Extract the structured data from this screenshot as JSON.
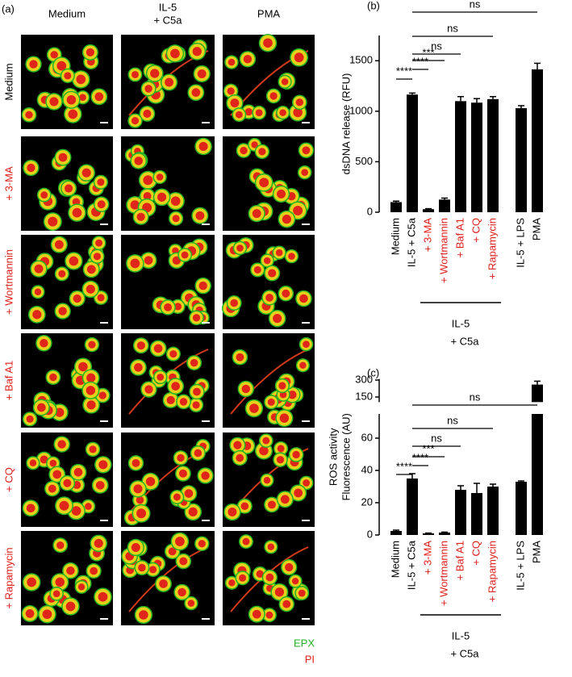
{
  "panel_a": {
    "label": "(a)",
    "columns": [
      [
        "Medium"
      ],
      [
        "IL-5",
        "+ C5a"
      ],
      [
        "PMA"
      ]
    ],
    "rows": [
      "Medium",
      "+ 3-MA",
      "+ Wortmannin",
      "+ Baf A1",
      "+ CQ",
      "+ Rapamycin"
    ],
    "row_colors": [
      "#000000",
      "#e0201b",
      "#e0201b",
      "#e0201b",
      "#e0201b",
      "#e0201b"
    ],
    "legend": [
      {
        "name": "EPX",
        "color": "#1fb21f"
      },
      {
        "name": "PI",
        "color": "#e0201b"
      }
    ]
  },
  "chart_data": [
    {
      "type": "bar",
      "panel": "(b)",
      "ylabel": [
        "dsDNA release (RFU)"
      ],
      "categories": [
        "Medium",
        "IL-5 + C5a",
        "+ 3-MA",
        "+ Wortmannin",
        "+ Baf A1",
        "+ CQ",
        "+ Rapamycin",
        "IL-5 + LPS",
        "PMA"
      ],
      "category_colors": [
        "#000000",
        "#000000",
        "#e0201b",
        "#e0201b",
        "#e0201b",
        "#e0201b",
        "#e0201b",
        "#000000",
        "#000000"
      ],
      "values": [
        100,
        1165,
        30,
        125,
        1100,
        1085,
        1120,
        1030,
        1415
      ],
      "errors": [
        10,
        15,
        5,
        15,
        45,
        40,
        25,
        25,
        60
      ],
      "color": "#000000",
      "ylim": [
        0,
        1750
      ],
      "yticks": [
        0,
        500,
        1000,
        1500
      ],
      "comparisons": [
        {
          "pair": [
            0,
            1
          ],
          "label": "****"
        },
        {
          "pair": [
            1,
            2
          ],
          "label": "****"
        },
        {
          "pair": [
            1,
            3
          ],
          "label": "***"
        },
        {
          "pair": [
            1,
            4
          ],
          "label": "ns"
        },
        {
          "pair": [
            1,
            6
          ],
          "label": "ns"
        },
        {
          "pair": [
            1,
            8
          ],
          "label": "ns"
        }
      ],
      "group": {
        "label": [
          "IL-5",
          "+ C5a"
        ],
        "span": [
          2,
          6
        ]
      }
    },
    {
      "type": "bar",
      "panel": "(c)",
      "ylabel": [
        "ROS activity",
        "Fluorescence (AU)"
      ],
      "categories": [
        "Medium",
        "IL-5 + C5a",
        "+ 3-MA",
        "+ Wortmannin",
        "+ Baf A1",
        "+ CQ",
        "+ Rapamycin",
        "IL-5 + LPS",
        "PMA"
      ],
      "category_colors": [
        "#000000",
        "#000000",
        "#e0201b",
        "#e0201b",
        "#e0201b",
        "#e0201b",
        "#e0201b",
        "#000000",
        "#000000"
      ],
      "values": [
        2.5,
        35,
        1,
        1.5,
        28,
        26,
        30,
        33,
        260
      ],
      "errors": [
        0.5,
        3,
        0.2,
        0.3,
        2.5,
        6,
        1.5,
        0.5,
        30
      ],
      "color": "#000000",
      "ylim": [
        0,
        310
      ],
      "y_break": [
        75,
        105
      ],
      "yticks": [
        0,
        20,
        40,
        60,
        150,
        300
      ],
      "comparisons": [
        {
          "pair": [
            0,
            1
          ],
          "label": "****"
        },
        {
          "pair": [
            1,
            2
          ],
          "label": "****"
        },
        {
          "pair": [
            1,
            3
          ],
          "label": "***"
        },
        {
          "pair": [
            1,
            4
          ],
          "label": "ns"
        },
        {
          "pair": [
            1,
            6
          ],
          "label": "ns"
        },
        {
          "pair": [
            1,
            8
          ],
          "label": "ns"
        }
      ],
      "group": {
        "label": [
          "IL-5",
          "+ C5a"
        ],
        "span": [
          2,
          6
        ]
      }
    }
  ]
}
